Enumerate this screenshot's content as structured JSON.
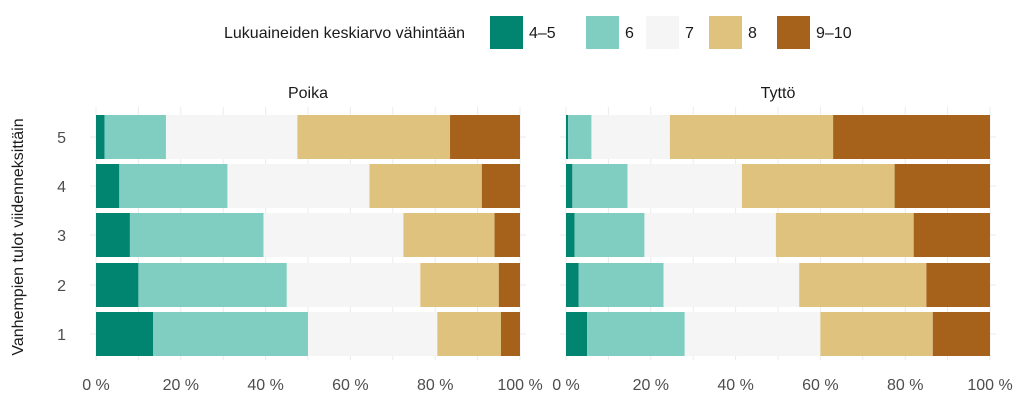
{
  "chart_data": {
    "type": "bar",
    "orientation": "horizontal",
    "stacked": "percent",
    "legend": {
      "title": "Lukuaineiden keskiarvo vähintään",
      "position": "top",
      "entries": [
        {
          "label": "4–5",
          "color": "#018571"
        },
        {
          "label": "6",
          "color": "#80cdc1"
        },
        {
          "label": "7",
          "color": "#f5f5f5"
        },
        {
          "label": "8",
          "color": "#dfc27d"
        },
        {
          "label": "9–10",
          "color": "#a6611a"
        }
      ]
    },
    "ylabel": "Vanhempien tulot viidenneksittäin",
    "xlabel": "",
    "xlim": [
      0,
      100
    ],
    "x_ticks": [
      "0 %",
      "20 %",
      "40 %",
      "60 %",
      "80 %",
      "100 %"
    ],
    "categories": [
      "1",
      "2",
      "3",
      "4",
      "5"
    ],
    "facets": [
      {
        "name": "Poika",
        "rows": [
          {
            "category": "1",
            "values": [
              13.5,
              36.5,
              30.5,
              15,
              4.5
            ]
          },
          {
            "category": "2",
            "values": [
              10,
              35,
              31.5,
              18.5,
              5
            ]
          },
          {
            "category": "3",
            "values": [
              8,
              31.5,
              33,
              21.5,
              6
            ]
          },
          {
            "category": "4",
            "values": [
              5.5,
              25.5,
              33.5,
              26.5,
              9
            ]
          },
          {
            "category": "5",
            "values": [
              2,
              14.5,
              31,
              36,
              16.5
            ]
          }
        ]
      },
      {
        "name": "Tyttö",
        "rows": [
          {
            "category": "1",
            "values": [
              5,
              23,
              32,
              26.5,
              13.5
            ]
          },
          {
            "category": "2",
            "values": [
              3,
              20,
              32,
              30,
              15
            ]
          },
          {
            "category": "3",
            "values": [
              2,
              16.5,
              31,
              32.5,
              18
            ]
          },
          {
            "category": "4",
            "values": [
              1.5,
              13,
              27,
              36,
              22.5
            ]
          },
          {
            "category": "5",
            "values": [
              0.5,
              5.5,
              18.5,
              38.5,
              37
            ]
          }
        ]
      }
    ]
  }
}
